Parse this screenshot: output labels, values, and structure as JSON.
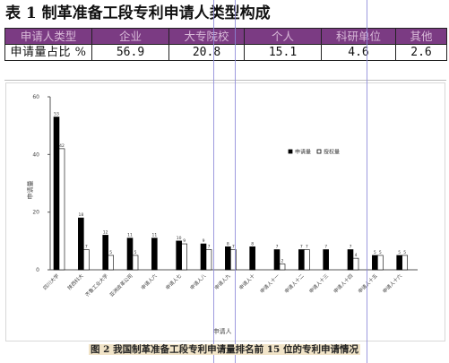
{
  "title": "表 1  制革准备工段专利申请人类型构成",
  "table": {
    "headers": [
      "申请人类型",
      "企业",
      "大专院校",
      "个人",
      "科研单位",
      "其他"
    ],
    "row_label": "申请量占比 %",
    "values": [
      "56.9",
      "20.8",
      "15.1",
      "4.6",
      "2.6"
    ]
  },
  "figure_caption": "图 2  我国制革准备工段专利申请量排名前 15 位的专利申请情况",
  "chart_data": {
    "type": "bar",
    "ylabel": "申请量",
    "xlabel": "申请人",
    "ylim": [
      0,
      60
    ],
    "yticks": [
      "0",
      "20",
      "40",
      "60"
    ],
    "legend_placement": "right",
    "series": [
      {
        "name": "申请量",
        "color": "#000000",
        "values": [
          53,
          18,
          12,
          11,
          11,
          10,
          9,
          8,
          8,
          7,
          7,
          7,
          7,
          5,
          5
        ]
      },
      {
        "name": "授权量",
        "color": "#ffffff",
        "values": [
          42,
          7,
          5,
          5,
          0,
          9,
          7,
          7,
          0,
          2,
          7,
          0,
          4,
          5,
          5
        ]
      }
    ],
    "categories": [
      "四川大学",
      "陕西科大",
      "齐鲁工业大学",
      "亚洲皮革公司",
      "申请人六",
      "申请人七",
      "申请人八",
      "申请人九",
      "申请人十",
      "申请人十一",
      "申请人十二",
      "申请人十三",
      "申请人十四",
      "申请人十五",
      "申请人十六"
    ],
    "data_labels": {
      "apply": [
        "53",
        "18",
        "12",
        "11",
        "11",
        "10",
        "9",
        "8",
        "8",
        "7",
        "7",
        "7",
        "7",
        "5",
        "5"
      ],
      "grant": [
        "42",
        "7",
        "5",
        "5",
        "",
        "9",
        "7",
        "7",
        "",
        "2",
        "7",
        "",
        "4",
        "5",
        "5"
      ]
    }
  }
}
